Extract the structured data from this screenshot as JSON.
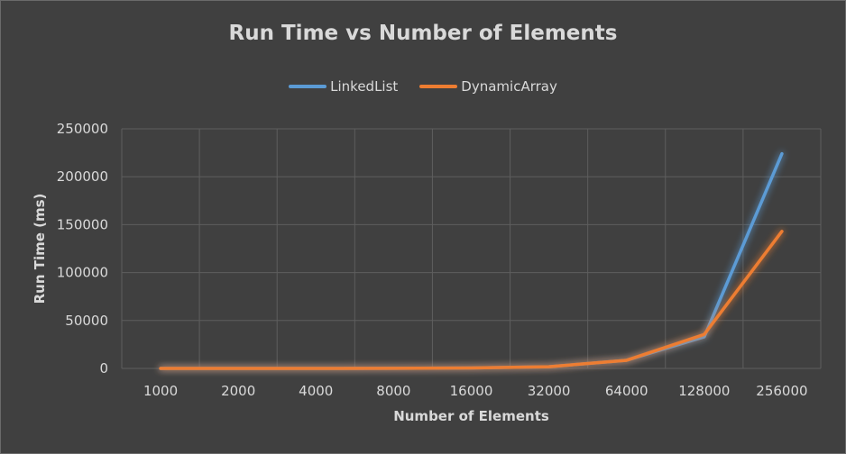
{
  "chart_data": {
    "type": "line",
    "title": "Run Time vs Number of Elements",
    "xlabel": "Number of Elements",
    "ylabel": "Run Time (ms)",
    "categories": [
      "1000",
      "2000",
      "4000",
      "8000",
      "16000",
      "32000",
      "64000",
      "128000",
      "256000"
    ],
    "ylim": [
      0,
      250000
    ],
    "yticks": [
      "0",
      "50000",
      "100000",
      "150000",
      "200000",
      "250000"
    ],
    "grid": true,
    "legend_position": "top",
    "series": [
      {
        "name": "LinkedList",
        "color": "#5b9bd5",
        "values": [
          0,
          0,
          0,
          100,
          500,
          1800,
          8500,
          33000,
          224000
        ]
      },
      {
        "name": "DynamicArray",
        "color": "#ed7d31",
        "values": [
          0,
          0,
          0,
          100,
          500,
          1800,
          8500,
          35500,
          143000
        ]
      }
    ]
  }
}
